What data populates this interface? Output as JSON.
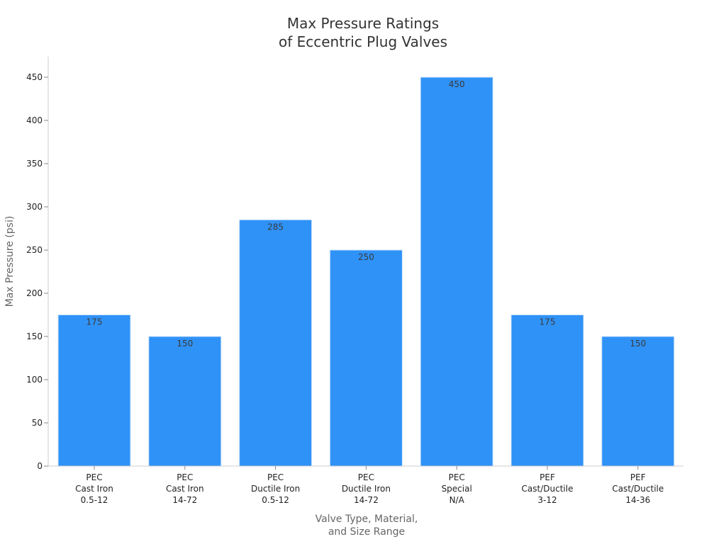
{
  "chart_data": {
    "type": "bar",
    "title": [
      "Max Pressure Ratings",
      "of Eccentric Plug Valves"
    ],
    "xlabel": [
      "Valve Type, Material,",
      "and Size Range"
    ],
    "ylabel": "Max Pressure (psi)",
    "ylim": [
      0,
      450
    ],
    "yticks": [
      0,
      50,
      100,
      150,
      200,
      250,
      300,
      350,
      400,
      450
    ],
    "grid": false,
    "legend": "none",
    "bar_color": "#2f92f7",
    "categories": [
      [
        "PEC",
        "Cast Iron",
        "0.5-12"
      ],
      [
        "PEC",
        "Cast Iron",
        "14-72"
      ],
      [
        "PEC",
        "Ductile Iron",
        "0.5-12"
      ],
      [
        "PEC",
        "Ductile Iron",
        "14-72"
      ],
      [
        "PEC",
        "Special",
        "N/A"
      ],
      [
        "PEF",
        "Cast/Ductile",
        "3-12"
      ],
      [
        "PEF",
        "Cast/Ductile",
        "14-36"
      ]
    ],
    "values": [
      175,
      150,
      285,
      250,
      450,
      175,
      150
    ]
  }
}
